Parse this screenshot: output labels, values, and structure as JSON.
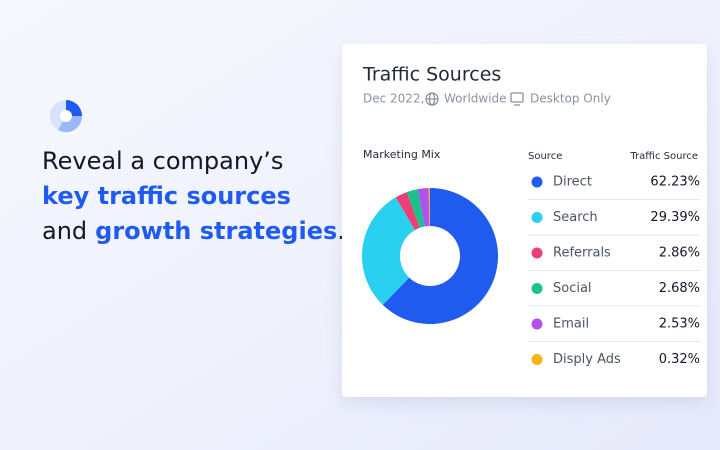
{
  "hero": {
    "line1": "Reveal a company’s",
    "line2": "key traffic sources",
    "line3_start": "and",
    "line3_highlight": "growth strategies",
    "line3_end": "."
  },
  "card": {
    "title": "Traffic Sources",
    "date": "Dec 2022,",
    "region": "Worldwide",
    "device": "Desktop Only"
  },
  "chart_data": {
    "type": "pie",
    "title": "Marketing Mix",
    "legend_header": [
      "Source",
      "Traffic Source"
    ],
    "categories": [
      "Direct",
      "Search",
      "Referrals",
      "Social",
      "Email",
      "Disply Ads"
    ],
    "values": [
      62.23,
      29.39,
      2.86,
      2.68,
      2.53,
      0.32
    ],
    "value_labels": [
      "62.23%",
      "29.39%",
      "2.86%",
      "2.68%",
      "2.53%",
      "0.32%"
    ],
    "colors": [
      "#1f5bef",
      "#2ad0ef",
      "#ee3f74",
      "#18c28a",
      "#b151ef",
      "#f7b21e"
    ]
  }
}
